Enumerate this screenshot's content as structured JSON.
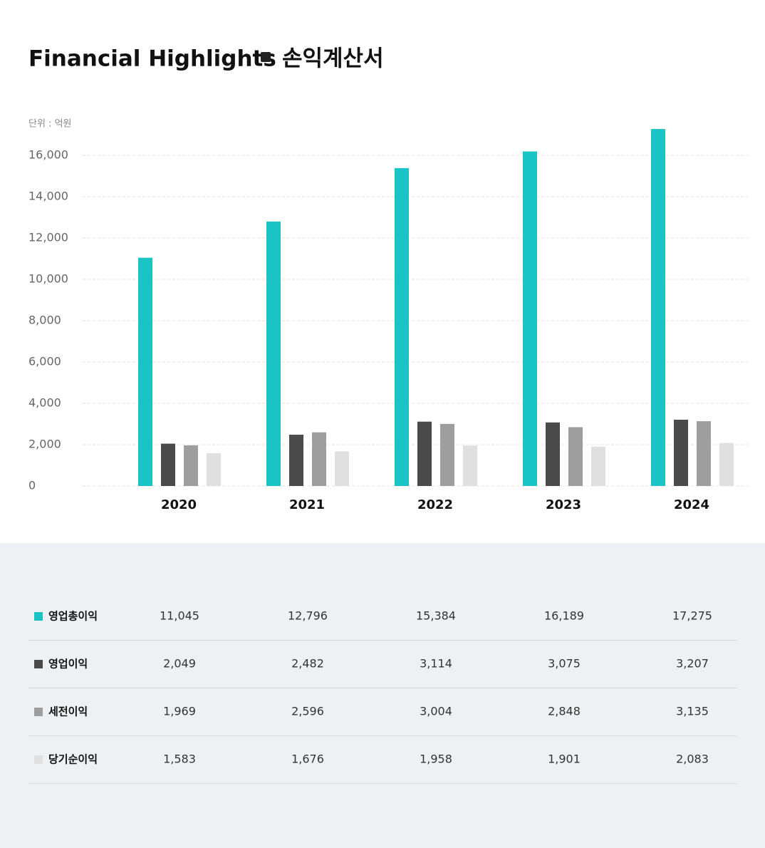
{
  "chart_data": {
    "type": "bar",
    "title": "Financial Highlights",
    "subtitle": "손익계산서",
    "unit_label": "단위 : 억원",
    "categories": [
      "2020",
      "2021",
      "2022",
      "2023",
      "2024"
    ],
    "series": [
      {
        "name": "영업총이익",
        "color": "#1bc4c4",
        "values": [
          11045,
          12796,
          15384,
          16189,
          17275
        ],
        "value_labels": [
          "11,045",
          "12,796",
          "15,384",
          "16,189",
          "17,275"
        ]
      },
      {
        "name": "영업이익",
        "color": "#4a4a4a",
        "values": [
          2049,
          2482,
          3114,
          3075,
          3207
        ],
        "value_labels": [
          "2,049",
          "2,482",
          "3,114",
          "3,075",
          "3,207"
        ]
      },
      {
        "name": "세전이익",
        "color": "#9e9e9e",
        "values": [
          1969,
          2596,
          3004,
          2848,
          3135
        ],
        "value_labels": [
          "1,969",
          "2,596",
          "3,004",
          "2,848",
          "3,135"
        ]
      },
      {
        "name": "당기순이익",
        "color": "#e0e0e0",
        "values": [
          1583,
          1676,
          1958,
          1901,
          2083
        ],
        "value_labels": [
          "1,583",
          "1,676",
          "1,958",
          "1,901",
          "2,083"
        ]
      }
    ],
    "ylim": [
      0,
      16000
    ],
    "yticks": [
      0,
      {
        "value": 2000,
        "label": "2,000"
      },
      {
        "value": 4000,
        "label": "4,000"
      },
      {
        "value": 6000,
        "label": "6,000"
      },
      {
        "value": 8000,
        "label": "8,000"
      },
      {
        "value": 10000,
        "label": "10,000"
      },
      {
        "value": 12000,
        "label": "12,000"
      },
      {
        "value": 14000,
        "label": "14,000"
      },
      {
        "value": 16000,
        "label": "16,000"
      }
    ],
    "grid": true
  }
}
